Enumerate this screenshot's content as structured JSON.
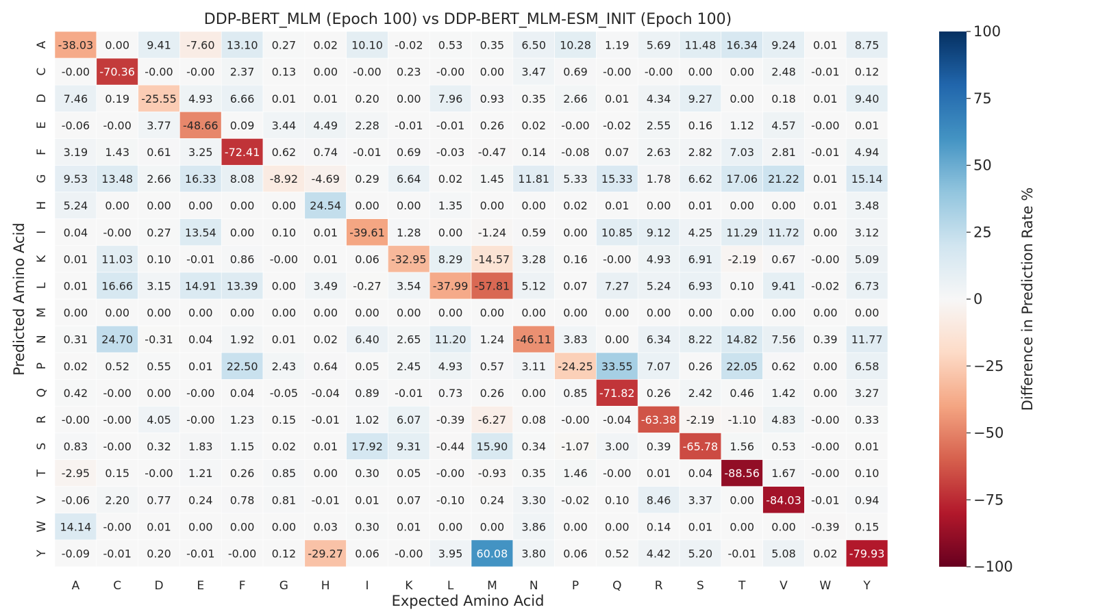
{
  "chart_data": {
    "type": "heatmap",
    "title": "DDP-BERT_MLM (Epoch 100) vs DDP-BERT_MLM-ESM_INIT (Epoch 100)",
    "xlabel": "Expected Amino Acid",
    "ylabel": "Predicted Amino Acid",
    "colorbar_label": "Difference in Prediction Rate %",
    "colorbar_range": [
      -100,
      100
    ],
    "colorbar_ticks": [
      "100",
      "75",
      "50",
      "25",
      "0",
      "−25",
      "−50",
      "−75",
      "−100"
    ],
    "colormap": "RdBu",
    "x_categories": [
      "A",
      "C",
      "D",
      "E",
      "F",
      "G",
      "H",
      "I",
      "K",
      "L",
      "M",
      "N",
      "P",
      "Q",
      "R",
      "S",
      "T",
      "V",
      "W",
      "Y"
    ],
    "y_categories": [
      "A",
      "C",
      "D",
      "E",
      "F",
      "G",
      "H",
      "I",
      "K",
      "L",
      "M",
      "N",
      "P",
      "Q",
      "R",
      "S",
      "T",
      "V",
      "W",
      "Y"
    ],
    "values": [
      [
        "-38.03",
        "0.00",
        "9.41",
        "-7.60",
        "13.10",
        "0.27",
        "0.02",
        "10.10",
        "-0.02",
        "0.53",
        "0.35",
        "6.50",
        "10.28",
        "1.19",
        "5.69",
        "11.48",
        "16.34",
        "9.24",
        "0.01",
        "8.75"
      ],
      [
        "-0.00",
        "-70.36",
        "-0.00",
        "-0.00",
        "2.37",
        "0.13",
        "0.00",
        "-0.00",
        "0.23",
        "-0.00",
        "0.00",
        "3.47",
        "0.69",
        "-0.00",
        "-0.00",
        "0.00",
        "0.00",
        "2.48",
        "-0.01",
        "0.12"
      ],
      [
        "7.46",
        "0.19",
        "-25.55",
        "4.93",
        "6.66",
        "0.01",
        "0.01",
        "0.20",
        "0.00",
        "7.96",
        "0.93",
        "0.35",
        "2.66",
        "0.01",
        "4.34",
        "9.27",
        "0.00",
        "0.18",
        "0.01",
        "9.40"
      ],
      [
        "-0.06",
        "-0.00",
        "3.77",
        "-48.66",
        "0.09",
        "3.44",
        "4.49",
        "2.28",
        "-0.01",
        "-0.01",
        "0.26",
        "0.02",
        "-0.00",
        "-0.02",
        "2.55",
        "0.16",
        "1.12",
        "4.57",
        "-0.00",
        "0.01"
      ],
      [
        "3.19",
        "1.43",
        "0.61",
        "3.25",
        "-72.41",
        "0.62",
        "0.74",
        "-0.01",
        "0.69",
        "-0.03",
        "-0.47",
        "0.14",
        "-0.08",
        "0.07",
        "2.63",
        "2.82",
        "7.03",
        "2.81",
        "-0.01",
        "4.94"
      ],
      [
        "9.53",
        "13.48",
        "2.66",
        "16.33",
        "8.08",
        "-8.92",
        "-4.69",
        "0.29",
        "6.64",
        "0.02",
        "1.45",
        "11.81",
        "5.33",
        "15.33",
        "1.78",
        "6.62",
        "17.06",
        "21.22",
        "0.01",
        "15.14"
      ],
      [
        "5.24",
        "0.00",
        "0.00",
        "0.00",
        "0.00",
        "0.00",
        "24.54",
        "0.00",
        "0.00",
        "1.35",
        "0.00",
        "0.00",
        "0.02",
        "0.01",
        "0.00",
        "0.01",
        "0.00",
        "0.00",
        "0.01",
        "3.48"
      ],
      [
        "0.04",
        "-0.00",
        "0.27",
        "13.54",
        "0.00",
        "0.10",
        "0.01",
        "-39.61",
        "1.28",
        "0.00",
        "-1.24",
        "0.59",
        "0.00",
        "10.85",
        "9.12",
        "4.25",
        "11.29",
        "11.72",
        "0.00",
        "3.12"
      ],
      [
        "0.01",
        "11.03",
        "0.10",
        "-0.01",
        "0.86",
        "-0.00",
        "0.01",
        "0.06",
        "-32.95",
        "8.29",
        "-14.57",
        "3.28",
        "0.16",
        "-0.00",
        "4.93",
        "6.91",
        "-2.19",
        "0.67",
        "-0.00",
        "5.09"
      ],
      [
        "0.01",
        "16.66",
        "3.15",
        "14.91",
        "13.39",
        "0.00",
        "3.49",
        "-0.27",
        "3.54",
        "-37.99",
        "-57.81",
        "5.12",
        "0.07",
        "7.27",
        "5.24",
        "6.93",
        "0.10",
        "9.41",
        "-0.02",
        "6.73"
      ],
      [
        "0.00",
        "0.00",
        "0.00",
        "0.00",
        "0.00",
        "0.00",
        "0.00",
        "0.00",
        "0.00",
        "0.00",
        "0.00",
        "0.00",
        "0.00",
        "0.00",
        "0.00",
        "0.00",
        "0.00",
        "0.00",
        "0.00",
        "0.00"
      ],
      [
        "0.31",
        "24.70",
        "-0.31",
        "0.04",
        "1.92",
        "0.01",
        "0.02",
        "6.40",
        "2.65",
        "11.20",
        "1.24",
        "-46.11",
        "3.83",
        "0.00",
        "6.34",
        "8.22",
        "14.82",
        "7.56",
        "0.39",
        "11.77"
      ],
      [
        "0.02",
        "0.52",
        "0.55",
        "0.01",
        "22.50",
        "2.43",
        "0.64",
        "0.05",
        "2.45",
        "4.93",
        "0.57",
        "3.11",
        "-24.25",
        "33.55",
        "7.07",
        "0.26",
        "22.05",
        "0.62",
        "0.00",
        "6.58"
      ],
      [
        "0.42",
        "-0.00",
        "0.00",
        "-0.00",
        "0.04",
        "-0.05",
        "-0.04",
        "0.89",
        "-0.01",
        "0.73",
        "0.26",
        "0.00",
        "0.85",
        "-71.82",
        "0.26",
        "2.42",
        "0.46",
        "1.42",
        "0.00",
        "3.27"
      ],
      [
        "-0.00",
        "-0.00",
        "4.05",
        "-0.00",
        "1.23",
        "0.15",
        "-0.01",
        "1.02",
        "6.07",
        "-0.39",
        "-6.27",
        "0.08",
        "-0.00",
        "-0.04",
        "-63.38",
        "-2.19",
        "-1.10",
        "4.83",
        "-0.00",
        "0.33"
      ],
      [
        "0.83",
        "-0.00",
        "0.32",
        "1.83",
        "1.15",
        "0.02",
        "0.01",
        "17.92",
        "9.31",
        "-0.44",
        "15.90",
        "0.34",
        "-1.07",
        "3.00",
        "0.39",
        "-65.78",
        "1.56",
        "0.53",
        "-0.00",
        "0.01"
      ],
      [
        "-2.95",
        "0.15",
        "-0.00",
        "1.21",
        "0.26",
        "0.85",
        "0.00",
        "0.30",
        "0.05",
        "-0.00",
        "-0.93",
        "0.35",
        "1.46",
        "-0.00",
        "0.01",
        "0.04",
        "-88.56",
        "1.67",
        "-0.00",
        "0.10"
      ],
      [
        "-0.06",
        "2.20",
        "0.77",
        "0.24",
        "0.78",
        "0.81",
        "-0.01",
        "0.01",
        "0.07",
        "-0.10",
        "0.24",
        "3.30",
        "-0.02",
        "0.10",
        "8.46",
        "3.37",
        "0.00",
        "-84.03",
        "-0.01",
        "0.94"
      ],
      [
        "14.14",
        "-0.00",
        "0.01",
        "0.00",
        "0.00",
        "0.00",
        "0.03",
        "0.30",
        "0.01",
        "0.00",
        "0.00",
        "3.86",
        "0.00",
        "0.00",
        "0.14",
        "0.01",
        "0.00",
        "0.00",
        "-0.39",
        "0.15"
      ],
      [
        "-0.09",
        "-0.01",
        "0.20",
        "-0.01",
        "-0.00",
        "0.12",
        "-29.27",
        "0.06",
        "-0.00",
        "3.95",
        "60.08",
        "3.80",
        "0.06",
        "0.52",
        "4.42",
        "5.20",
        "-0.01",
        "5.08",
        "0.02",
        "-79.93"
      ]
    ]
  }
}
